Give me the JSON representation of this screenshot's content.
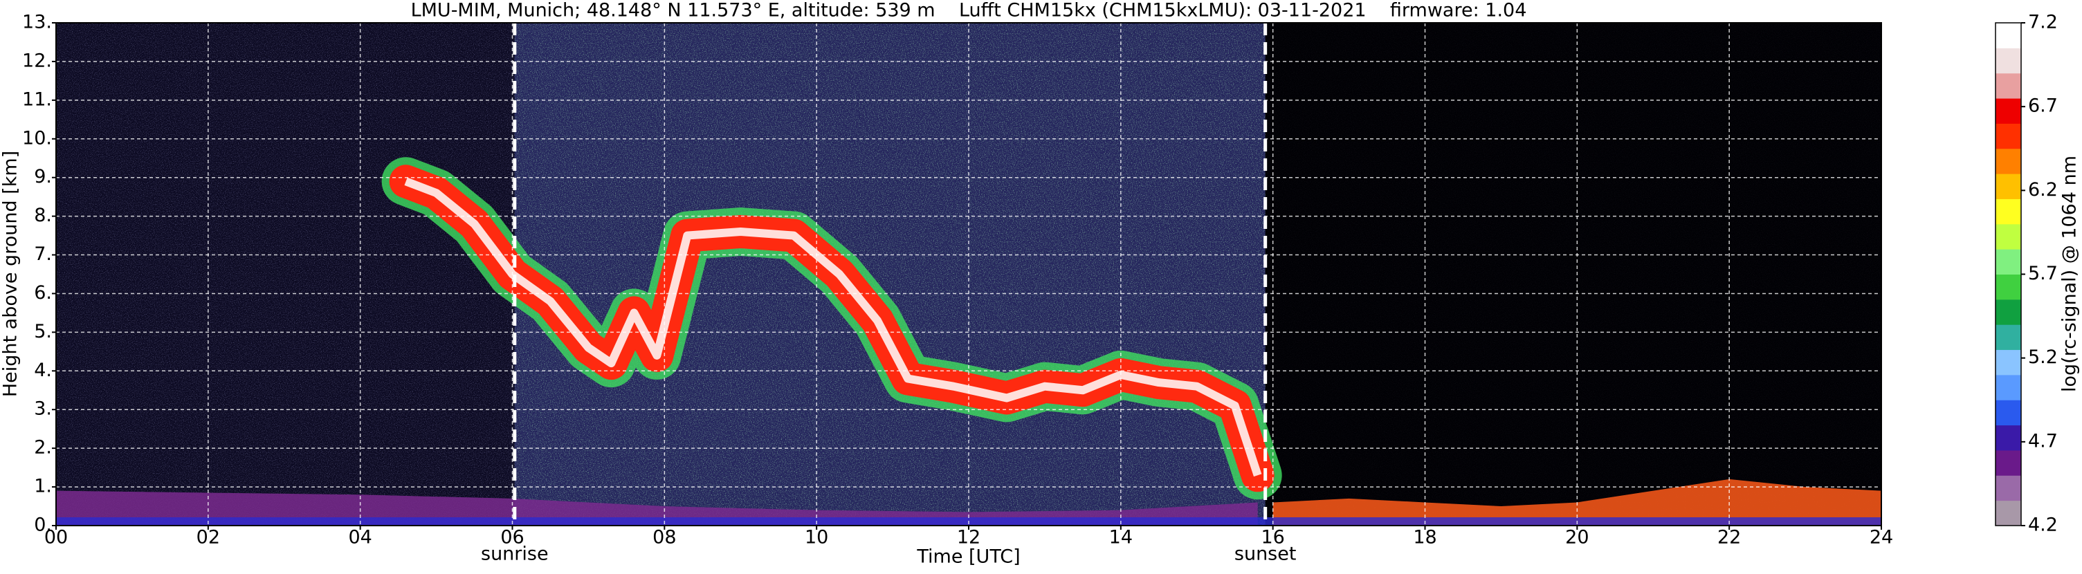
{
  "chart_data": {
    "type": "lidar-profile",
    "title": "LMU-MIM, Munich; 48.148° N 11.573° E, altitude: 539 m    Lufft CHM15kx (CHM15kxLMU): 03-11-2021    firmware: 1.04",
    "x_label": "Time [UTC]",
    "y_label": "Height above ground [km]",
    "xlim": [
      0,
      24
    ],
    "ylim": [
      0,
      13
    ],
    "xticks": [
      {
        "value": 0,
        "label": "00"
      },
      {
        "value": 2,
        "label": "02"
      },
      {
        "value": 4,
        "label": "04"
      },
      {
        "value": 6,
        "label": "06"
      },
      {
        "value": 8,
        "label": "08"
      },
      10,
      12,
      14,
      16,
      18,
      20,
      22,
      24
    ],
    "yticks": [
      {
        "value": 0,
        "label": "0."
      },
      {
        "value": 1,
        "label": "1."
      },
      {
        "value": 2,
        "label": "2."
      },
      {
        "value": 3,
        "label": "3."
      },
      {
        "value": 4,
        "label": "4."
      },
      {
        "value": 5,
        "label": "5."
      },
      {
        "value": 6,
        "label": "6."
      },
      {
        "value": 7,
        "label": "7."
      },
      {
        "value": 8,
        "label": "8."
      },
      {
        "value": 9,
        "label": "9."
      },
      {
        "value": 10,
        "label": "10."
      },
      {
        "value": 11,
        "label": "11."
      },
      {
        "value": 12,
        "label": "12."
      },
      {
        "value": 13,
        "label": "13."
      }
    ],
    "grid": true,
    "annotations": [
      {
        "x": 6.03,
        "text": "sunrise"
      },
      {
        "x": 15.9,
        "text": "sunset"
      }
    ],
    "layers": [
      {
        "color": "#ff2a10",
        "x": [
          4.6,
          5.0,
          5.5,
          6.0,
          6.5,
          7.0,
          7.3,
          7.6,
          7.9,
          8.3,
          9.0,
          9.7,
          10.3,
          10.8,
          11.2,
          11.8,
          12.5,
          13.0,
          13.5,
          14.0,
          14.5,
          15.0,
          15.5,
          15.8
        ],
        "y": [
          8.9,
          8.6,
          7.8,
          6.5,
          5.8,
          4.6,
          4.2,
          5.5,
          4.4,
          7.5,
          7.6,
          7.5,
          6.5,
          5.3,
          3.8,
          3.6,
          3.3,
          3.6,
          3.5,
          3.9,
          3.7,
          3.6,
          3.1,
          1.3
        ]
      },
      {
        "color": "#7a2a8e",
        "x": [
          0,
          2,
          4,
          6,
          8,
          10,
          12,
          14,
          15.8
        ],
        "y": [
          0.9,
          0.85,
          0.8,
          0.7,
          0.5,
          0.4,
          0.35,
          0.4,
          0.6
        ]
      },
      {
        "color": "#ff5a1a",
        "x": [
          16,
          17,
          18,
          19,
          20,
          21,
          22,
          23,
          24
        ],
        "y": [
          0.6,
          0.7,
          0.6,
          0.5,
          0.6,
          0.9,
          1.2,
          1.0,
          0.9
        ]
      }
    ],
    "colorbar": {
      "label": "log(rc-signal) @ 1064 nm",
      "clim": [
        4.2,
        7.2
      ],
      "ticks": [
        4.2,
        4.7,
        5.2,
        5.7,
        6.2,
        6.7,
        7.2
      ],
      "colormap": [
        "#a898a8",
        "#9a6aa8",
        "#6a1a8a",
        "#3a1aa8",
        "#2a5aee",
        "#5a9aff",
        "#8ac4ff",
        "#30b0a0",
        "#10a040",
        "#40d040",
        "#80f080",
        "#c0ff40",
        "#ffff20",
        "#ffc000",
        "#ff8000",
        "#ff3000",
        "#ee0000",
        "#e8a0a0",
        "#f0e0e0",
        "#ffffff"
      ]
    }
  }
}
